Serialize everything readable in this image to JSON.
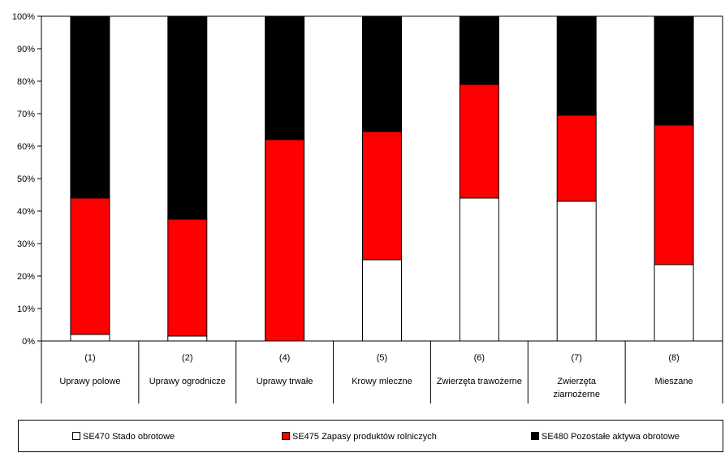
{
  "chart_data": {
    "type": "bar",
    "stacked": true,
    "percent": true,
    "codes": [
      "(1)",
      "(2)",
      "(4)",
      "(5)",
      "(6)",
      "(7)",
      "(8)"
    ],
    "categories": [
      [
        "Uprawy polowe"
      ],
      [
        "Uprawy ogrodnicze"
      ],
      [
        "Uprawy trwałe"
      ],
      [
        "Krowy mleczne"
      ],
      [
        "Zwierzęta trawożerne"
      ],
      [
        "Zwierzęta",
        "ziarnożerne"
      ],
      [
        "Mieszane"
      ]
    ],
    "series": [
      {
        "name": "SE470 Stado obrotowe",
        "color": "#ffffff",
        "values": [
          2,
          1.5,
          0,
          25,
          44,
          43,
          23.5
        ]
      },
      {
        "name": "SE475 Zapasy produktów rolniczych",
        "color": "#ff0000",
        "values": [
          42,
          36,
          62,
          39.5,
          35,
          26.5,
          43
        ]
      },
      {
        "name": "SE480 Pozostałe aktywa obrotowe",
        "color": "#000000",
        "values": [
          56,
          62.5,
          38,
          35.5,
          21,
          30.5,
          33.5
        ]
      }
    ],
    "ylim": [
      0,
      100
    ],
    "yticks": [
      "0%",
      "10%",
      "20%",
      "30%",
      "40%",
      "50%",
      "60%",
      "70%",
      "80%",
      "90%",
      "100%"
    ],
    "legend_position": "bottom"
  }
}
